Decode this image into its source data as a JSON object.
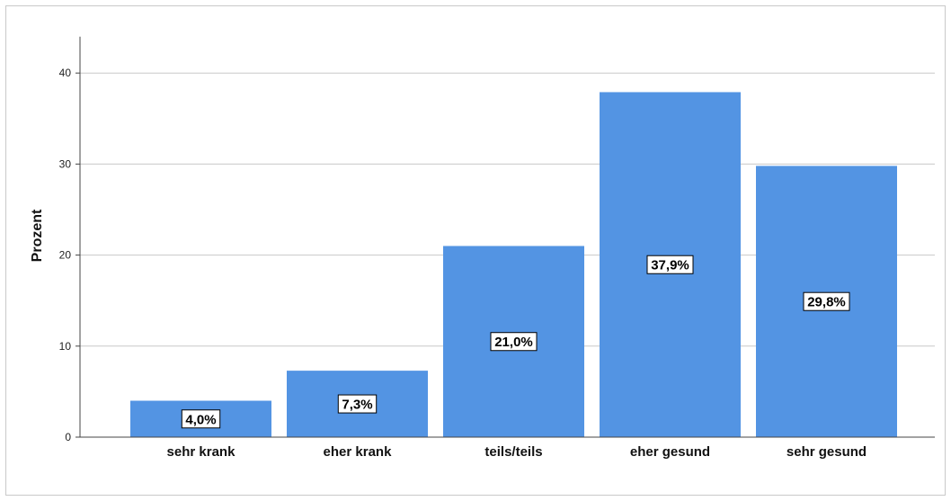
{
  "chart_data": {
    "type": "bar",
    "categories": [
      "sehr krank",
      "eher krank",
      "teils/teils",
      "eher gesund",
      "sehr gesund"
    ],
    "values": [
      4.0,
      7.3,
      21.0,
      37.9,
      29.8
    ],
    "data_labels": [
      "4,0%",
      "7,3%",
      "21,0%",
      "37,9%",
      "29,8%"
    ],
    "title": "",
    "xlabel": "",
    "ylabel": "Prozent",
    "ylim": [
      0,
      44
    ],
    "yticks": [
      0,
      10,
      20,
      30,
      40
    ],
    "grid": "horizontal",
    "legend": "none",
    "colors": {
      "bar": "#5394e3",
      "grid": "#c8c8c8",
      "axis": "#444444",
      "label_box_border": "#000000",
      "label_box_fill": "#ffffff"
    }
  }
}
